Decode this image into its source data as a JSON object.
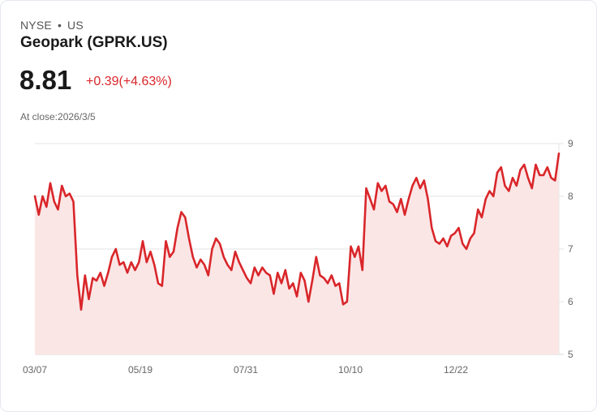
{
  "header": {
    "exchange": "NYSE",
    "separator": "•",
    "region": "US",
    "title": "Geopark (GPRK.US)",
    "price": "8.81",
    "change": "+0.39(+4.63%)",
    "close_label": "At close:2026/3/5"
  },
  "colors": {
    "line": "#d9262a",
    "fill": "#fbe6e6",
    "grid": "#e3e3e3",
    "change": "#d9262a"
  },
  "axis": {
    "x_ticks": [
      "03/07",
      "05/19",
      "07/31",
      "10/10",
      "12/22"
    ],
    "y_ticks": [
      "9",
      "8",
      "7",
      "6",
      "5"
    ]
  },
  "chart_data": {
    "type": "area",
    "title": "Geopark (GPRK.US)",
    "xlabel": "",
    "ylabel": "",
    "ylim": [
      5,
      9
    ],
    "x_tick_labels": [
      "03/07",
      "05/19",
      "07/31",
      "10/10",
      "12/22"
    ],
    "y_tick_labels": [
      5,
      6,
      7,
      8,
      9
    ],
    "grid": true,
    "legend": false,
    "series": [
      {
        "name": "GPRK.US close",
        "values": [
          8.0,
          7.65,
          8.0,
          7.8,
          8.25,
          7.9,
          7.75,
          8.2,
          8.0,
          8.05,
          7.9,
          6.5,
          5.85,
          6.5,
          6.05,
          6.45,
          6.4,
          6.55,
          6.3,
          6.55,
          6.85,
          7.0,
          6.7,
          6.75,
          6.55,
          6.75,
          6.6,
          6.75,
          7.15,
          6.75,
          6.95,
          6.7,
          6.35,
          6.3,
          7.15,
          6.85,
          6.95,
          7.4,
          7.7,
          7.6,
          7.2,
          6.85,
          6.65,
          6.8,
          6.7,
          6.5,
          7.0,
          7.2,
          7.1,
          6.85,
          6.7,
          6.6,
          6.95,
          6.75,
          6.6,
          6.45,
          6.35,
          6.65,
          6.5,
          6.65,
          6.55,
          6.5,
          6.15,
          6.55,
          6.35,
          6.6,
          6.25,
          6.35,
          6.1,
          6.55,
          6.4,
          6.0,
          6.4,
          6.85,
          6.5,
          6.45,
          6.35,
          6.5,
          6.3,
          6.35,
          5.95,
          6.0,
          7.05,
          6.85,
          7.05,
          6.6,
          8.15,
          7.95,
          7.75,
          8.25,
          8.1,
          8.2,
          7.9,
          7.85,
          7.7,
          7.95,
          7.65,
          7.95,
          8.2,
          8.35,
          8.15,
          8.3,
          7.95,
          7.4,
          7.15,
          7.1,
          7.2,
          7.05,
          7.25,
          7.3,
          7.4,
          7.1,
          7.0,
          7.2,
          7.3,
          7.75,
          7.6,
          7.95,
          8.1,
          8.0,
          8.45,
          8.55,
          8.2,
          8.1,
          8.35,
          8.2,
          8.5,
          8.6,
          8.35,
          8.15,
          8.6,
          8.4,
          8.4,
          8.55,
          8.35,
          8.3,
          8.81
        ]
      }
    ]
  }
}
